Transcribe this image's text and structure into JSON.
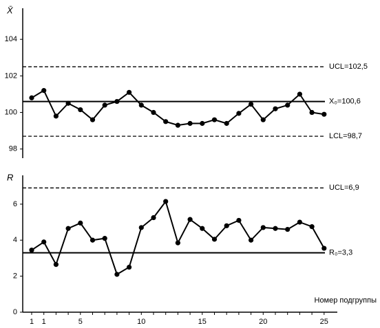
{
  "chart_data": [
    {
      "type": "line",
      "y_label": "X̄",
      "ylim": [
        97.5,
        105.7
      ],
      "yticks": [
        98,
        100,
        102,
        104
      ],
      "series": [
        {
          "color": "#000000",
          "values": [
            100.8,
            101.2,
            99.8,
            100.5,
            100.15,
            99.6,
            100.4,
            100.6,
            101.1,
            100.4,
            100.0,
            99.5,
            99.3,
            99.4,
            99.4,
            99.6,
            99.4,
            99.95,
            100.45,
            99.6,
            100.2,
            100.4,
            101.0,
            100.0,
            99.9
          ]
        }
      ],
      "lines": [
        {
          "value": 102.5,
          "label": "UCL=102,5",
          "style": "dashed"
        },
        {
          "value": 100.6,
          "label": "X₀=100,6",
          "style": "solid"
        },
        {
          "value": 98.7,
          "label": "LCL=98,7",
          "style": "dashed"
        }
      ]
    },
    {
      "type": "line",
      "y_label": "R",
      "x_label": "Номер подгруппы",
      "ylim": [
        0,
        7.6
      ],
      "yticks": [
        0,
        2,
        4,
        6
      ],
      "categories": [
        "1",
        "1",
        null,
        null,
        "5",
        null,
        null,
        null,
        null,
        "10",
        null,
        null,
        null,
        null,
        "15",
        null,
        null,
        null,
        null,
        "20",
        null,
        null,
        null,
        null,
        "25"
      ],
      "series": [
        {
          "color": "#000000",
          "values": [
            3.45,
            3.9,
            2.65,
            4.65,
            4.95,
            4.0,
            4.1,
            2.1,
            2.5,
            4.7,
            5.25,
            6.15,
            3.85,
            5.15,
            4.65,
            4.05,
            4.8,
            5.1,
            4.0,
            4.7,
            4.65,
            4.6,
            5.0,
            4.75,
            3.55
          ]
        }
      ],
      "lines": [
        {
          "value": 6.9,
          "label": "UCL=6,9",
          "style": "dashed"
        },
        {
          "value": 3.3,
          "label": "R₀=3,3",
          "style": "solid"
        }
      ]
    }
  ]
}
